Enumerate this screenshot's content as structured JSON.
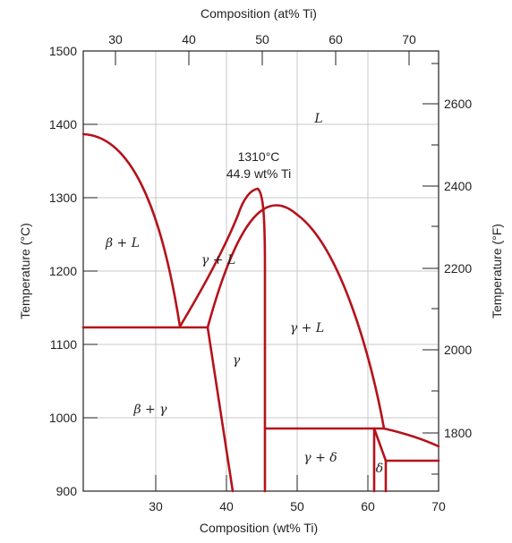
{
  "titles": {
    "top_axis": "Composition (at% Ti)",
    "bottom_axis": "Composition (wt% Ti)",
    "left_axis": "Temperature (°C)",
    "right_axis": "Temperature (°F)"
  },
  "axes": {
    "bottom_ticks": [
      "30",
      "40",
      "50",
      "60",
      "70"
    ],
    "top_ticks": [
      "30",
      "40",
      "50",
      "60",
      "70"
    ],
    "left_ticks": [
      "900",
      "1000",
      "1100",
      "1200",
      "1300",
      "1400",
      "1500"
    ],
    "right_ticks": [
      "1800",
      "2000",
      "2200",
      "2400",
      "2600"
    ]
  },
  "annotation": {
    "line1": "1310°C",
    "line2": "44.9 wt% Ti"
  },
  "phases": {
    "liquid": "L",
    "beta_liquid": "β + L",
    "gamma_liquid_left": "γ + L",
    "gamma_liquid_right": "γ + L",
    "gamma": "γ",
    "beta_gamma": "β + γ",
    "gamma_delta": "γ + δ",
    "delta": "δ"
  },
  "colors": {
    "phase_boundary": "#b5121b",
    "grid": "#c8c8c8",
    "frame": "#231f20"
  }
}
